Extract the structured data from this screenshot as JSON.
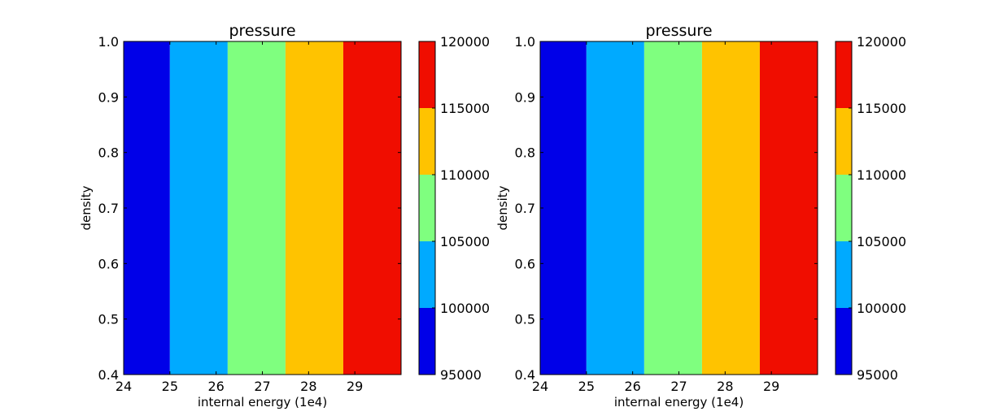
{
  "chart_data": [
    {
      "type": "heatmap",
      "title": "pressure",
      "xlabel": "internal energy (1e4)",
      "ylabel": "density",
      "xlim": [
        24,
        30
      ],
      "ylim": [
        0.4,
        1.0
      ],
      "xticks": [
        "24",
        "25",
        "26",
        "27",
        "28",
        "29"
      ],
      "yticks": [
        "0.4",
        "0.5",
        "0.6",
        "0.7",
        "0.8",
        "0.9",
        "1.0"
      ],
      "bands": [
        {
          "x_start": 24.0,
          "x_end": 25.0,
          "level": "95000-100000",
          "color": "#0000e8"
        },
        {
          "x_start": 25.0,
          "x_end": 26.25,
          "level": "100000-105000",
          "color": "#00aaff"
        },
        {
          "x_start": 26.25,
          "x_end": 27.5,
          "level": "105000-110000",
          "color": "#7fff7f"
        },
        {
          "x_start": 27.5,
          "x_end": 28.75,
          "level": "110000-115000",
          "color": "#ffc300"
        },
        {
          "x_start": 28.75,
          "x_end": 30.0,
          "level": "115000-120000",
          "color": "#f00d00"
        }
      ],
      "colorbar": {
        "ticks": [
          "95000",
          "100000",
          "105000",
          "110000",
          "115000",
          "120000"
        ],
        "levels": [
          95000,
          100000,
          105000,
          110000,
          115000,
          120000
        ],
        "colors": [
          "#0000e8",
          "#00aaff",
          "#7fff7f",
          "#ffc300",
          "#f00d00"
        ]
      }
    },
    {
      "type": "heatmap",
      "title": "pressure",
      "xlabel": "internal energy (1e4)",
      "ylabel": "density",
      "xlim": [
        24,
        30
      ],
      "ylim": [
        0.4,
        1.0
      ],
      "xticks": [
        "24",
        "25",
        "26",
        "27",
        "28",
        "29"
      ],
      "yticks": [
        "0.4",
        "0.5",
        "0.6",
        "0.7",
        "0.8",
        "0.9",
        "1.0"
      ],
      "bands": [
        {
          "x_start": 24.0,
          "x_end": 25.0,
          "level": "95000-100000",
          "color": "#0000e8"
        },
        {
          "x_start": 25.0,
          "x_end": 26.25,
          "level": "100000-105000",
          "color": "#00aaff"
        },
        {
          "x_start": 26.25,
          "x_end": 27.5,
          "level": "105000-110000",
          "color": "#7fff7f"
        },
        {
          "x_start": 27.5,
          "x_end": 28.75,
          "level": "110000-115000",
          "color": "#ffc300"
        },
        {
          "x_start": 28.75,
          "x_end": 30.0,
          "level": "115000-120000",
          "color": "#f00d00"
        }
      ],
      "colorbar": {
        "ticks": [
          "95000",
          "100000",
          "105000",
          "110000",
          "115000",
          "120000"
        ],
        "levels": [
          95000,
          100000,
          105000,
          110000,
          115000,
          120000
        ],
        "colors": [
          "#0000e8",
          "#00aaff",
          "#7fff7f",
          "#ffc300",
          "#f00d00"
        ]
      }
    }
  ]
}
